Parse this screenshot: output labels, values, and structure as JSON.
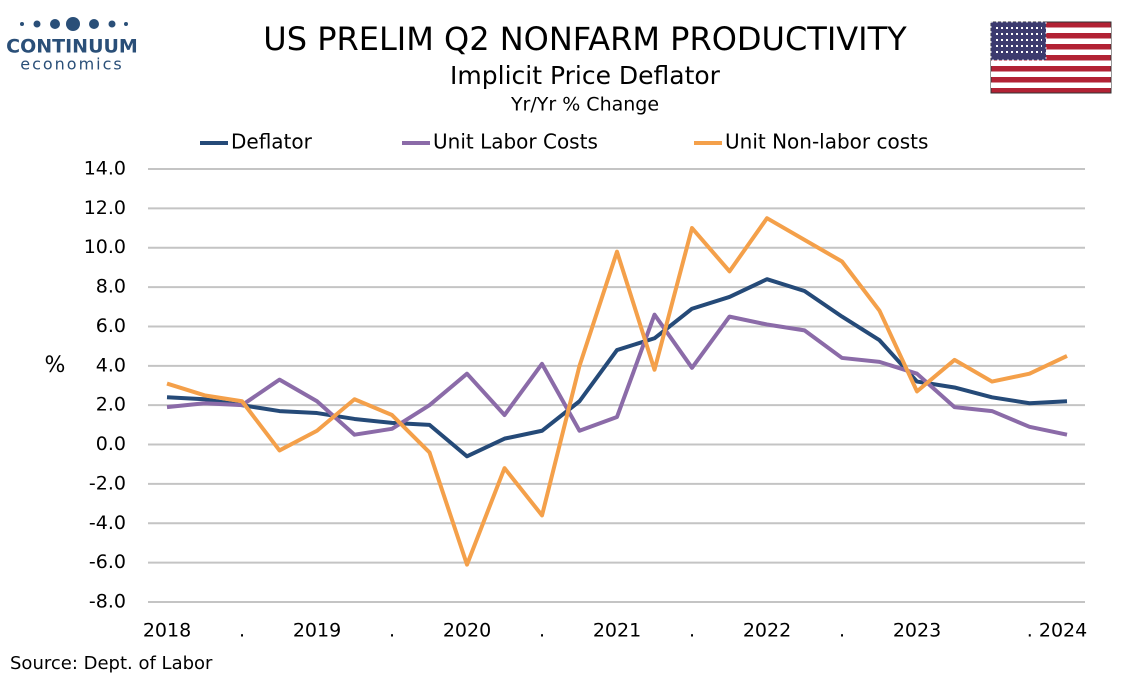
{
  "logo": {
    "name": "CONTINUUM",
    "tagline": "economics"
  },
  "chart_data": {
    "type": "line",
    "title": "US PRELIM Q2  NONFARM PRODUCTIVITY",
    "subtitle": "Implicit Price Deflator",
    "subtitle2": "Yr/Yr % Change",
    "y_label": "%",
    "source": "Source: Dept. of Labor",
    "categories": [
      "2018",
      null,
      ".",
      null,
      "2019",
      null,
      ".",
      null,
      "2020",
      null,
      ".",
      null,
      "2021",
      null,
      ".",
      null,
      "2022",
      null,
      ".",
      null,
      "2023",
      null,
      null,
      null,
      ". 2024"
    ],
    "series": [
      {
        "name": "Deflator",
        "color": "#254a78",
        "values": [
          2.4,
          2.3,
          2.0,
          1.7,
          1.6,
          1.3,
          1.1,
          1.0,
          -0.6,
          0.3,
          0.7,
          2.2,
          4.8,
          5.4,
          6.9,
          7.5,
          8.4,
          7.8,
          6.5,
          5.3,
          3.2,
          2.9,
          2.4,
          2.1,
          2.2
        ]
      },
      {
        "name": "Unit Labor Costs",
        "color": "#8b6ba8",
        "values": [
          1.9,
          2.1,
          2.0,
          3.3,
          2.2,
          0.5,
          0.8,
          2.0,
          3.6,
          1.5,
          4.1,
          0.7,
          1.4,
          6.6,
          3.9,
          6.5,
          6.1,
          5.8,
          4.4,
          4.2,
          3.6,
          1.9,
          1.7,
          0.9,
          0.5
        ]
      },
      {
        "name": "Unit Non-labor costs",
        "color": "#f4a04a",
        "values": [
          3.1,
          2.5,
          2.2,
          -0.3,
          0.7,
          2.3,
          1.5,
          -0.4,
          -6.1,
          -1.2,
          -3.6,
          4.0,
          9.8,
          3.8,
          11.0,
          8.8,
          11.5,
          10.4,
          9.3,
          6.8,
          2.7,
          4.3,
          3.2,
          3.6,
          4.5
        ]
      }
    ],
    "ylim": [
      -8,
      14
    ],
    "yticks": [
      {
        "value": 14,
        "label": "14.0"
      },
      {
        "value": 12,
        "label": "12.0"
      },
      {
        "value": 10,
        "label": "10.0"
      },
      {
        "value": 8,
        "label": "8.0"
      },
      {
        "value": 6,
        "label": "6.0"
      },
      {
        "value": 4,
        "label": "4.0"
      },
      {
        "value": 2,
        "label": "2.0"
      },
      {
        "value": 0,
        "label": "0.0"
      },
      {
        "value": -2,
        "label": "-2.0"
      },
      {
        "value": -4,
        "label": "-4.0"
      },
      {
        "value": -6,
        "label": "-6.0"
      },
      {
        "value": -8,
        "label": "-8.0"
      }
    ],
    "grid": true
  }
}
